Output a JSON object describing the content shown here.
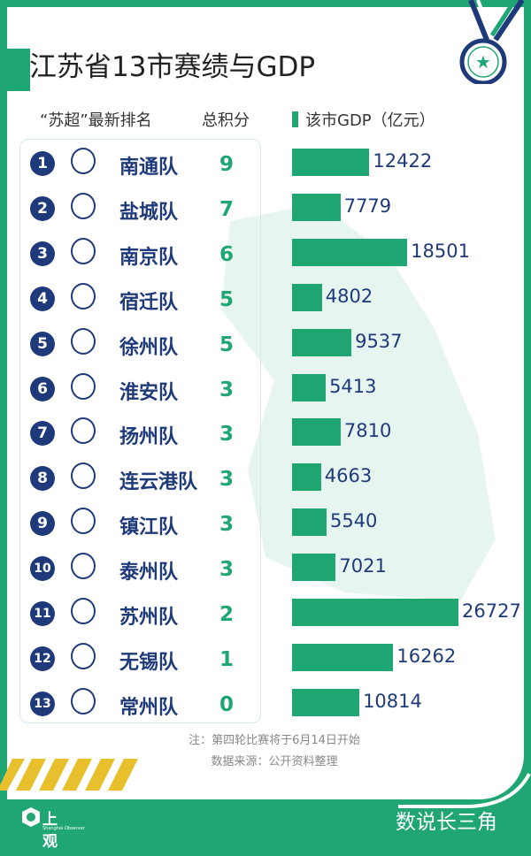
{
  "title": "江苏省13市赛绩与GDP",
  "headers": {
    "ranking": "“苏超”最新排名",
    "points": "总积分",
    "gdp": "该市GDP（亿元）"
  },
  "colors": {
    "accent": "#1fa672",
    "navy": "#1f3a7a",
    "stripe": "#e8bf2c"
  },
  "rows": [
    {
      "rank": "1",
      "team": "南通队",
      "points": "9",
      "gdp": 12422
    },
    {
      "rank": "2",
      "team": "盐城队",
      "points": "7",
      "gdp": 7779
    },
    {
      "rank": "3",
      "team": "南京队",
      "points": "6",
      "gdp": 18501
    },
    {
      "rank": "4",
      "team": "宿迁队",
      "points": "5",
      "gdp": 4802
    },
    {
      "rank": "5",
      "team": "徐州队",
      "points": "5",
      "gdp": 9537
    },
    {
      "rank": "6",
      "team": "淮安队",
      "points": "3",
      "gdp": 5413
    },
    {
      "rank": "7",
      "team": "扬州队",
      "points": "3",
      "gdp": 7810
    },
    {
      "rank": "8",
      "team": "连云港队",
      "points": "3",
      "gdp": 4663
    },
    {
      "rank": "9",
      "team": "镇江队",
      "points": "3",
      "gdp": 5540
    },
    {
      "rank": "10",
      "team": "泰州队",
      "points": "3",
      "gdp": 7021
    },
    {
      "rank": "11",
      "team": "苏州队",
      "points": "2",
      "gdp": 26727
    },
    {
      "rank": "12",
      "team": "无锡队",
      "points": "1",
      "gdp": 16262
    },
    {
      "rank": "13",
      "team": "常州队",
      "points": "0",
      "gdp": 10814
    }
  ],
  "footer": {
    "note": "注：第四轮比赛将于6月14日开始",
    "source": "数据来源：公开资料整理",
    "brand": "上观",
    "brand_sub": "Shanghai Observer",
    "column": "数说长三角"
  }
}
